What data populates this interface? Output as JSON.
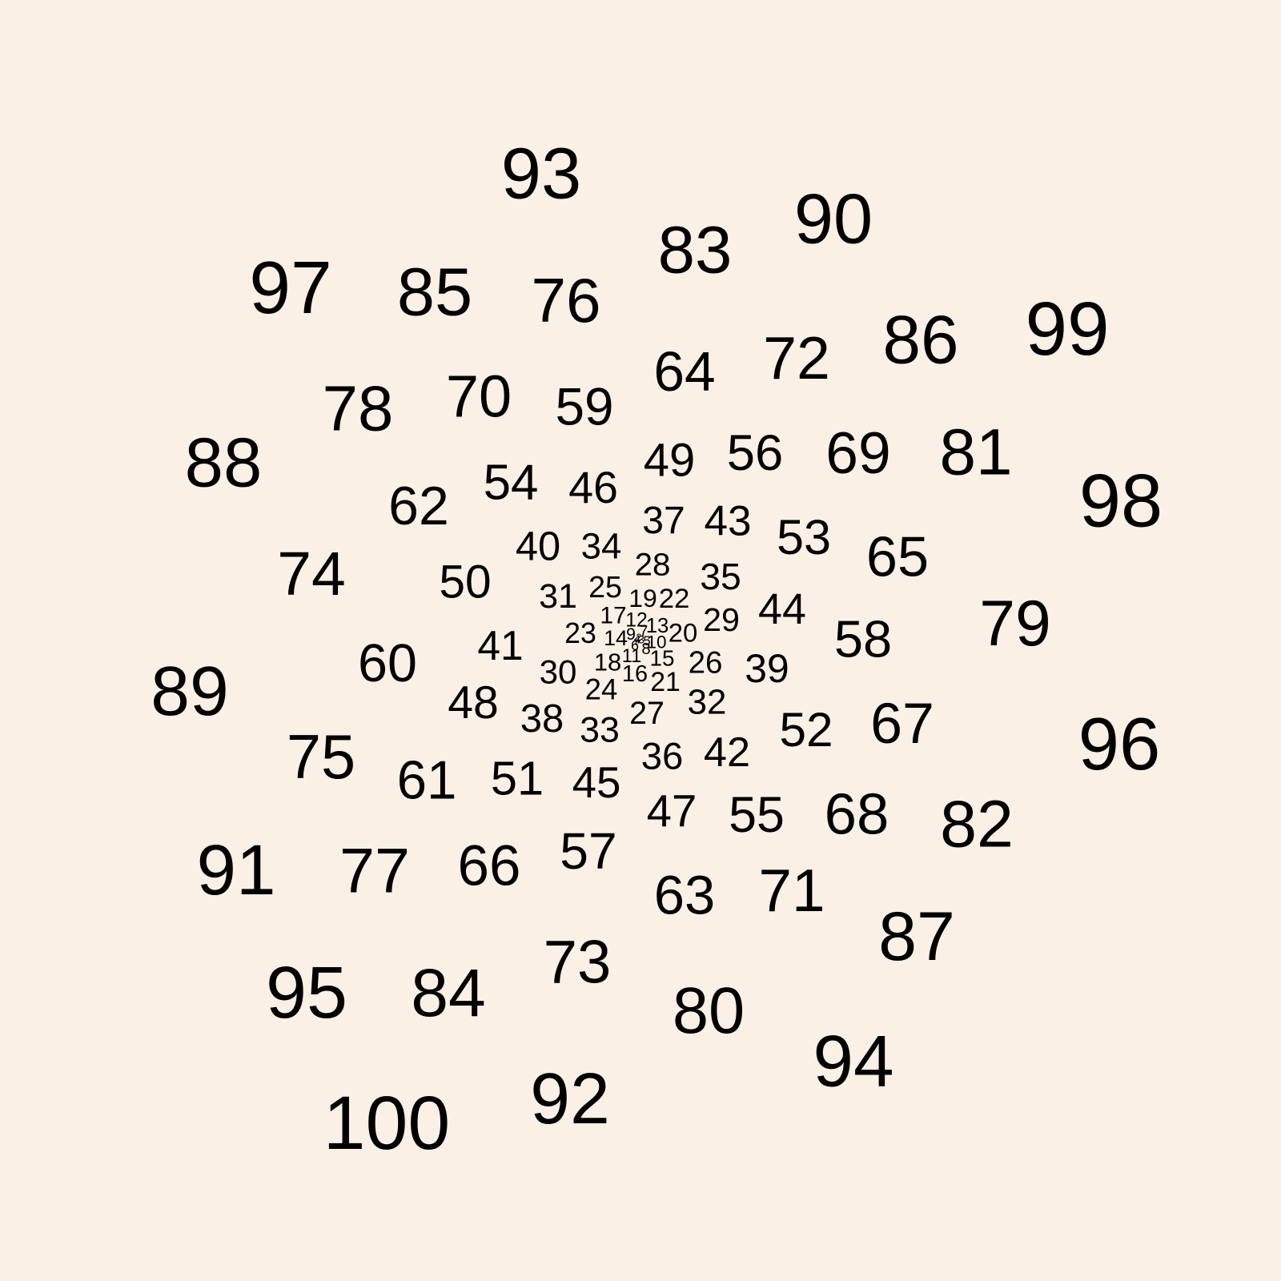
{
  "background_color": "#faf0e6",
  "text_color": "#000000",
  "numbers": [
    1,
    2,
    3,
    4,
    5,
    6,
    7,
    8,
    9,
    10,
    11,
    12,
    13,
    14,
    15,
    16,
    17,
    18,
    19,
    20,
    21,
    22,
    23,
    24,
    25,
    26,
    27,
    28,
    29,
    30,
    31,
    32,
    33,
    34,
    35,
    36,
    37,
    38,
    39,
    40,
    41,
    42,
    43,
    44,
    45,
    46,
    47,
    48,
    49,
    50,
    51,
    52,
    53,
    54,
    55,
    56,
    57,
    58,
    59,
    60,
    61,
    62,
    63,
    64,
    65,
    66,
    67,
    68,
    69,
    70,
    71,
    72,
    73,
    74,
    75,
    76,
    77,
    78,
    79,
    80,
    81,
    82,
    83,
    84,
    85,
    86,
    87,
    88,
    89,
    90,
    91,
    92,
    93,
    94,
    95,
    96,
    97,
    98,
    99,
    100
  ]
}
